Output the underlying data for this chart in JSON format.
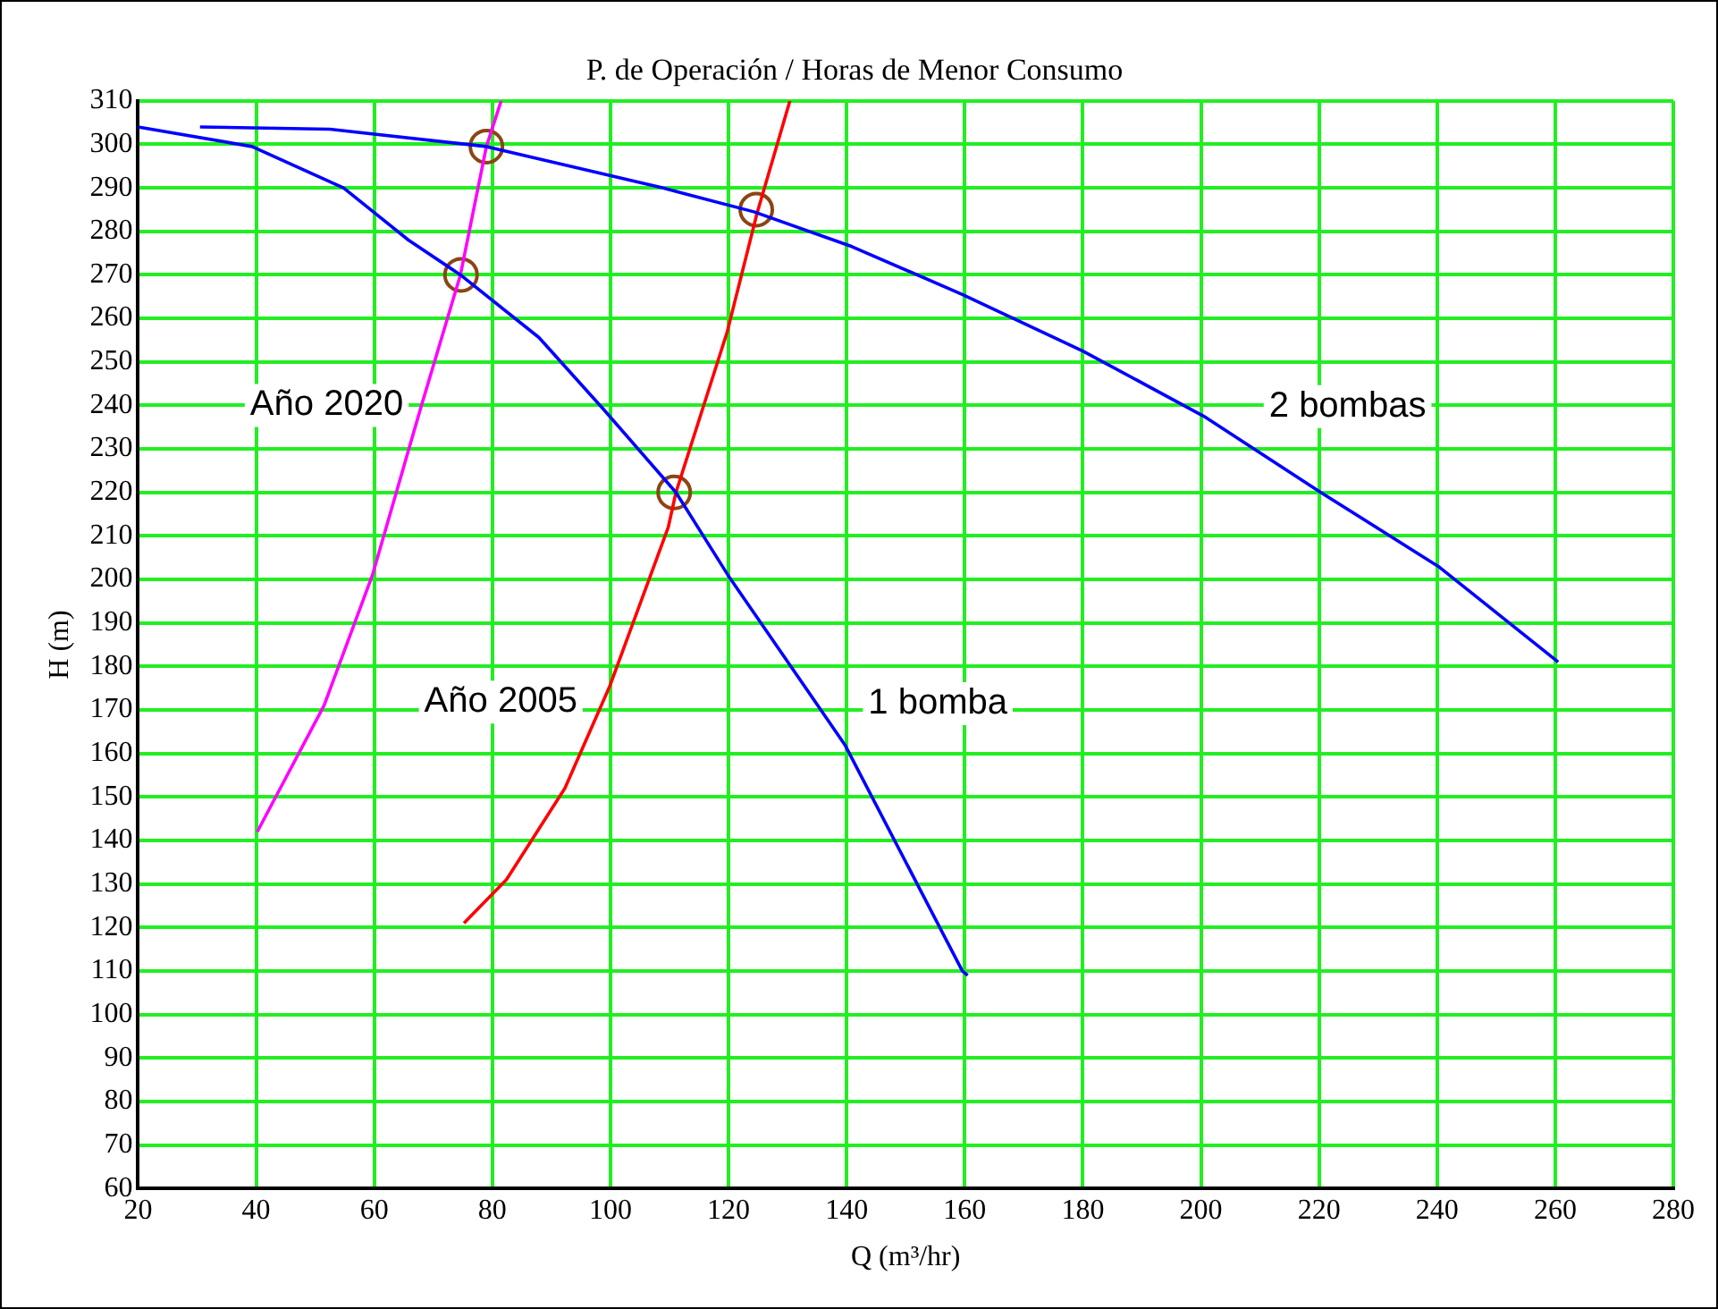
{
  "chart_data": {
    "type": "line",
    "title": "P. de Operación / Horas de Menor Consumo",
    "xlabel": "Q (m³/hr)",
    "ylabel": "H (m)",
    "xlim": [
      20,
      280
    ],
    "xticks": [
      20,
      40,
      60,
      80,
      100,
      120,
      140,
      160,
      180,
      200,
      220,
      240,
      260,
      280
    ],
    "ylim": [
      60,
      310
    ],
    "yticks": [
      60,
      70,
      80,
      90,
      100,
      110,
      120,
      130,
      140,
      150,
      160,
      170,
      180,
      190,
      200,
      210,
      220,
      230,
      240,
      250,
      260,
      270,
      280,
      290,
      300,
      310
    ],
    "grid": true,
    "legend": false,
    "marker": "none",
    "line_style": "solid",
    "series": [
      {
        "name": "1 bomba",
        "color": "#0000ff",
        "x": [
          20,
          39.3,
          54.8,
          65.8,
          74.6,
          87.9,
          98.9,
          111.1,
          119.9,
          139.7,
          159.6,
          160.5
        ],
        "values": [
          304,
          299.5,
          290,
          278,
          270,
          255.6,
          239,
          220,
          201,
          162,
          110,
          109
        ]
      },
      {
        "name": "2 bombas",
        "color": "#0000ff",
        "x": [
          30.5,
          52.5,
          79,
          108.8,
          124.3,
          140.9,
          159.6,
          180,
          200.5,
          220.3,
          240.2,
          260.5
        ],
        "values": [
          304,
          303.5,
          299.5,
          290,
          284.5,
          276.5,
          265.5,
          252.5,
          237.5,
          220,
          203,
          181
        ]
      },
      {
        "name": "Año 2020",
        "color": "#ff00ff",
        "x": [
          40.2,
          51.5,
          59.7,
          68,
          74.6,
          79,
          81.5
        ],
        "values": [
          142,
          171,
          201,
          240,
          270,
          299.5,
          310
        ]
      },
      {
        "name": "Año 2005",
        "color": "#ff0000",
        "x": [
          75.2,
          82.4,
          92.3,
          99.9,
          109.8,
          111.1,
          119.8,
          124.8,
          130.4
        ],
        "values": [
          121,
          131,
          152,
          175.5,
          212,
          220,
          257,
          284,
          310
        ]
      },
      {
        "type": "scatter",
        "marker": "circle",
        "color": "#8b4513",
        "x": [
          74.7,
          79,
          110.8,
          124.7
        ],
        "values": [
          270,
          299.5,
          220,
          285
        ]
      }
    ]
  }
}
